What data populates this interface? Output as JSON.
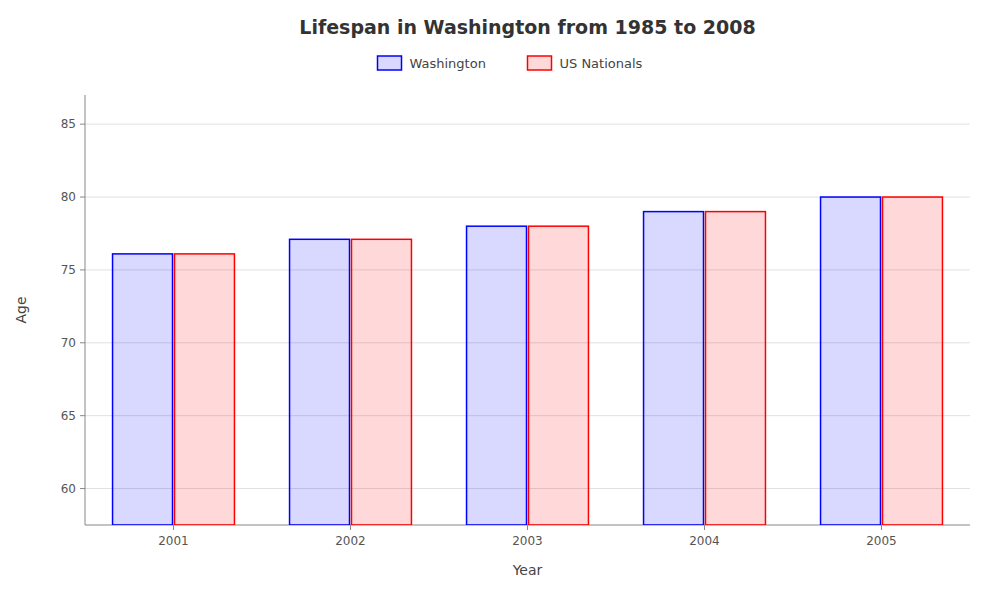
{
  "chart_data": {
    "type": "bar",
    "title": "Lifespan in Washington from 1985 to 2008",
    "x_label": "Year",
    "y_label": "Age",
    "categories": [
      "2001",
      "2002",
      "2003",
      "2004",
      "2005"
    ],
    "series": [
      {
        "name": "Washington",
        "color": "#0000ff",
        "values": [
          76.1,
          77.1,
          78.0,
          79.0,
          80.0
        ]
      },
      {
        "name": "US Nationals",
        "color": "#ff0000",
        "values": [
          76.1,
          77.1,
          78.0,
          79.0,
          80.0
        ]
      }
    ],
    "ylim": [
      57.5,
      87
    ],
    "yticks": [
      60,
      65,
      70,
      75,
      80,
      85
    ],
    "grid": true,
    "legend": "top"
  }
}
